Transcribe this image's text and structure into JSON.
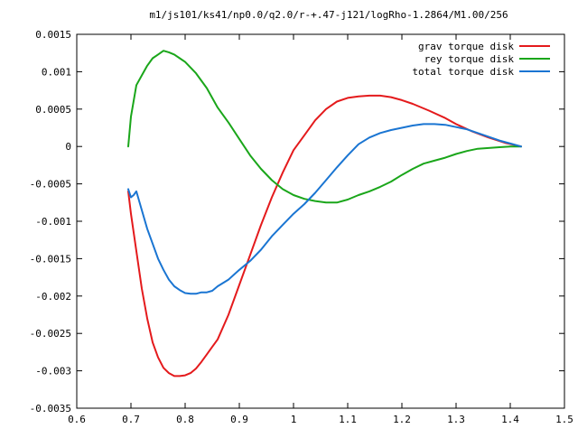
{
  "chart_data": {
    "type": "line",
    "title": "m1/js101/ks41/np0.0/q2.0/r-+.47-j121/logRho-1.2864/M1.00/256",
    "xlabel": "",
    "ylabel": "",
    "xlim": [
      0.6,
      1.5
    ],
    "ylim": [
      -0.0035,
      0.0015
    ],
    "x_ticks": [
      0.6,
      0.7,
      0.8,
      0.9,
      1.0,
      1.1,
      1.2,
      1.3,
      1.4,
      1.5
    ],
    "x_tick_labels": [
      "0.6",
      "0.7",
      "0.8",
      "0.9",
      "1",
      "1.1",
      "1.2",
      "1.3",
      "1.4",
      "1.5"
    ],
    "y_ticks": [
      -0.0035,
      -0.003,
      -0.0025,
      -0.002,
      -0.0015,
      -0.001,
      -0.0005,
      0,
      0.0005,
      0.001,
      0.0015
    ],
    "y_tick_labels": [
      "-0.0035",
      "-0.003",
      "-0.0025",
      "-0.002",
      "-0.0015",
      "-0.001",
      "-0.0005",
      "0",
      "0.0005",
      "0.001",
      "0.0015"
    ],
    "grid": false,
    "legend_position": "top-right",
    "series": [
      {
        "name": "grav torque disk",
        "color": "#e41a1c",
        "x": [
          0.695,
          0.7,
          0.71,
          0.72,
          0.73,
          0.74,
          0.75,
          0.76,
          0.77,
          0.78,
          0.79,
          0.8,
          0.81,
          0.82,
          0.83,
          0.84,
          0.85,
          0.86,
          0.88,
          0.9,
          0.92,
          0.94,
          0.96,
          0.98,
          1.0,
          1.02,
          1.04,
          1.06,
          1.08,
          1.1,
          1.12,
          1.14,
          1.16,
          1.18,
          1.2,
          1.22,
          1.25,
          1.28,
          1.3,
          1.33,
          1.36,
          1.39,
          1.42
        ],
        "y": [
          -0.0006,
          -0.0009,
          -0.0014,
          -0.0019,
          -0.0023,
          -0.00262,
          -0.00282,
          -0.00296,
          -0.00303,
          -0.00307,
          -0.00307,
          -0.00306,
          -0.00303,
          -0.00297,
          -0.00288,
          -0.00278,
          -0.00268,
          -0.00258,
          -0.00225,
          -0.00185,
          -0.00145,
          -0.00105,
          -0.00068,
          -0.00035,
          -5e-05,
          0.00015,
          0.00035,
          0.0005,
          0.0006,
          0.00065,
          0.00067,
          0.00068,
          0.00068,
          0.00066,
          0.00062,
          0.00057,
          0.00048,
          0.00038,
          0.0003,
          0.0002,
          0.00012,
          5e-05,
          0.0
        ]
      },
      {
        "name": "rey torque disk",
        "color": "#1aa61a",
        "x": [
          0.695,
          0.7,
          0.71,
          0.72,
          0.73,
          0.74,
          0.75,
          0.76,
          0.77,
          0.78,
          0.79,
          0.8,
          0.82,
          0.84,
          0.86,
          0.88,
          0.9,
          0.92,
          0.94,
          0.96,
          0.98,
          1.0,
          1.02,
          1.04,
          1.06,
          1.08,
          1.1,
          1.12,
          1.14,
          1.16,
          1.18,
          1.2,
          1.22,
          1.24,
          1.26,
          1.28,
          1.3,
          1.32,
          1.34,
          1.36,
          1.38,
          1.4,
          1.42
        ],
        "y": [
          0.0,
          0.0004,
          0.00082,
          0.00095,
          0.00108,
          0.00118,
          0.00123,
          0.00128,
          0.00126,
          0.00123,
          0.00118,
          0.00113,
          0.00098,
          0.00078,
          0.00052,
          0.00032,
          0.0001,
          -0.00012,
          -0.0003,
          -0.00045,
          -0.00057,
          -0.00065,
          -0.0007,
          -0.00073,
          -0.00075,
          -0.00075,
          -0.00071,
          -0.00065,
          -0.0006,
          -0.00054,
          -0.00047,
          -0.00038,
          -0.0003,
          -0.00023,
          -0.00019,
          -0.00015,
          -0.0001,
          -6e-05,
          -3e-05,
          -2e-05,
          -1e-05,
          0.0,
          0.0
        ]
      },
      {
        "name": "total torque disk",
        "color": "#1a75d2",
        "x": [
          0.695,
          0.7,
          0.705,
          0.71,
          0.72,
          0.73,
          0.74,
          0.75,
          0.76,
          0.77,
          0.78,
          0.79,
          0.8,
          0.81,
          0.82,
          0.83,
          0.84,
          0.85,
          0.86,
          0.88,
          0.9,
          0.92,
          0.94,
          0.96,
          0.98,
          1.0,
          1.02,
          1.04,
          1.06,
          1.08,
          1.1,
          1.12,
          1.14,
          1.16,
          1.18,
          1.2,
          1.22,
          1.24,
          1.26,
          1.28,
          1.3,
          1.32,
          1.34,
          1.36,
          1.38,
          1.4,
          1.42
        ],
        "y": [
          -0.00057,
          -0.00068,
          -0.00065,
          -0.0006,
          -0.00085,
          -0.0011,
          -0.0013,
          -0.0015,
          -0.00165,
          -0.00178,
          -0.00187,
          -0.00192,
          -0.00196,
          -0.00197,
          -0.00197,
          -0.00195,
          -0.00195,
          -0.00193,
          -0.00187,
          -0.00178,
          -0.00165,
          -0.00153,
          -0.00138,
          -0.0012,
          -0.00105,
          -0.0009,
          -0.00077,
          -0.00062,
          -0.00045,
          -0.00028,
          -0.00012,
          3e-05,
          0.00012,
          0.00018,
          0.00022,
          0.00025,
          0.00028,
          0.0003,
          0.0003,
          0.00029,
          0.00026,
          0.00023,
          0.00018,
          0.00013,
          8e-05,
          4e-05,
          0.0
        ]
      }
    ]
  }
}
